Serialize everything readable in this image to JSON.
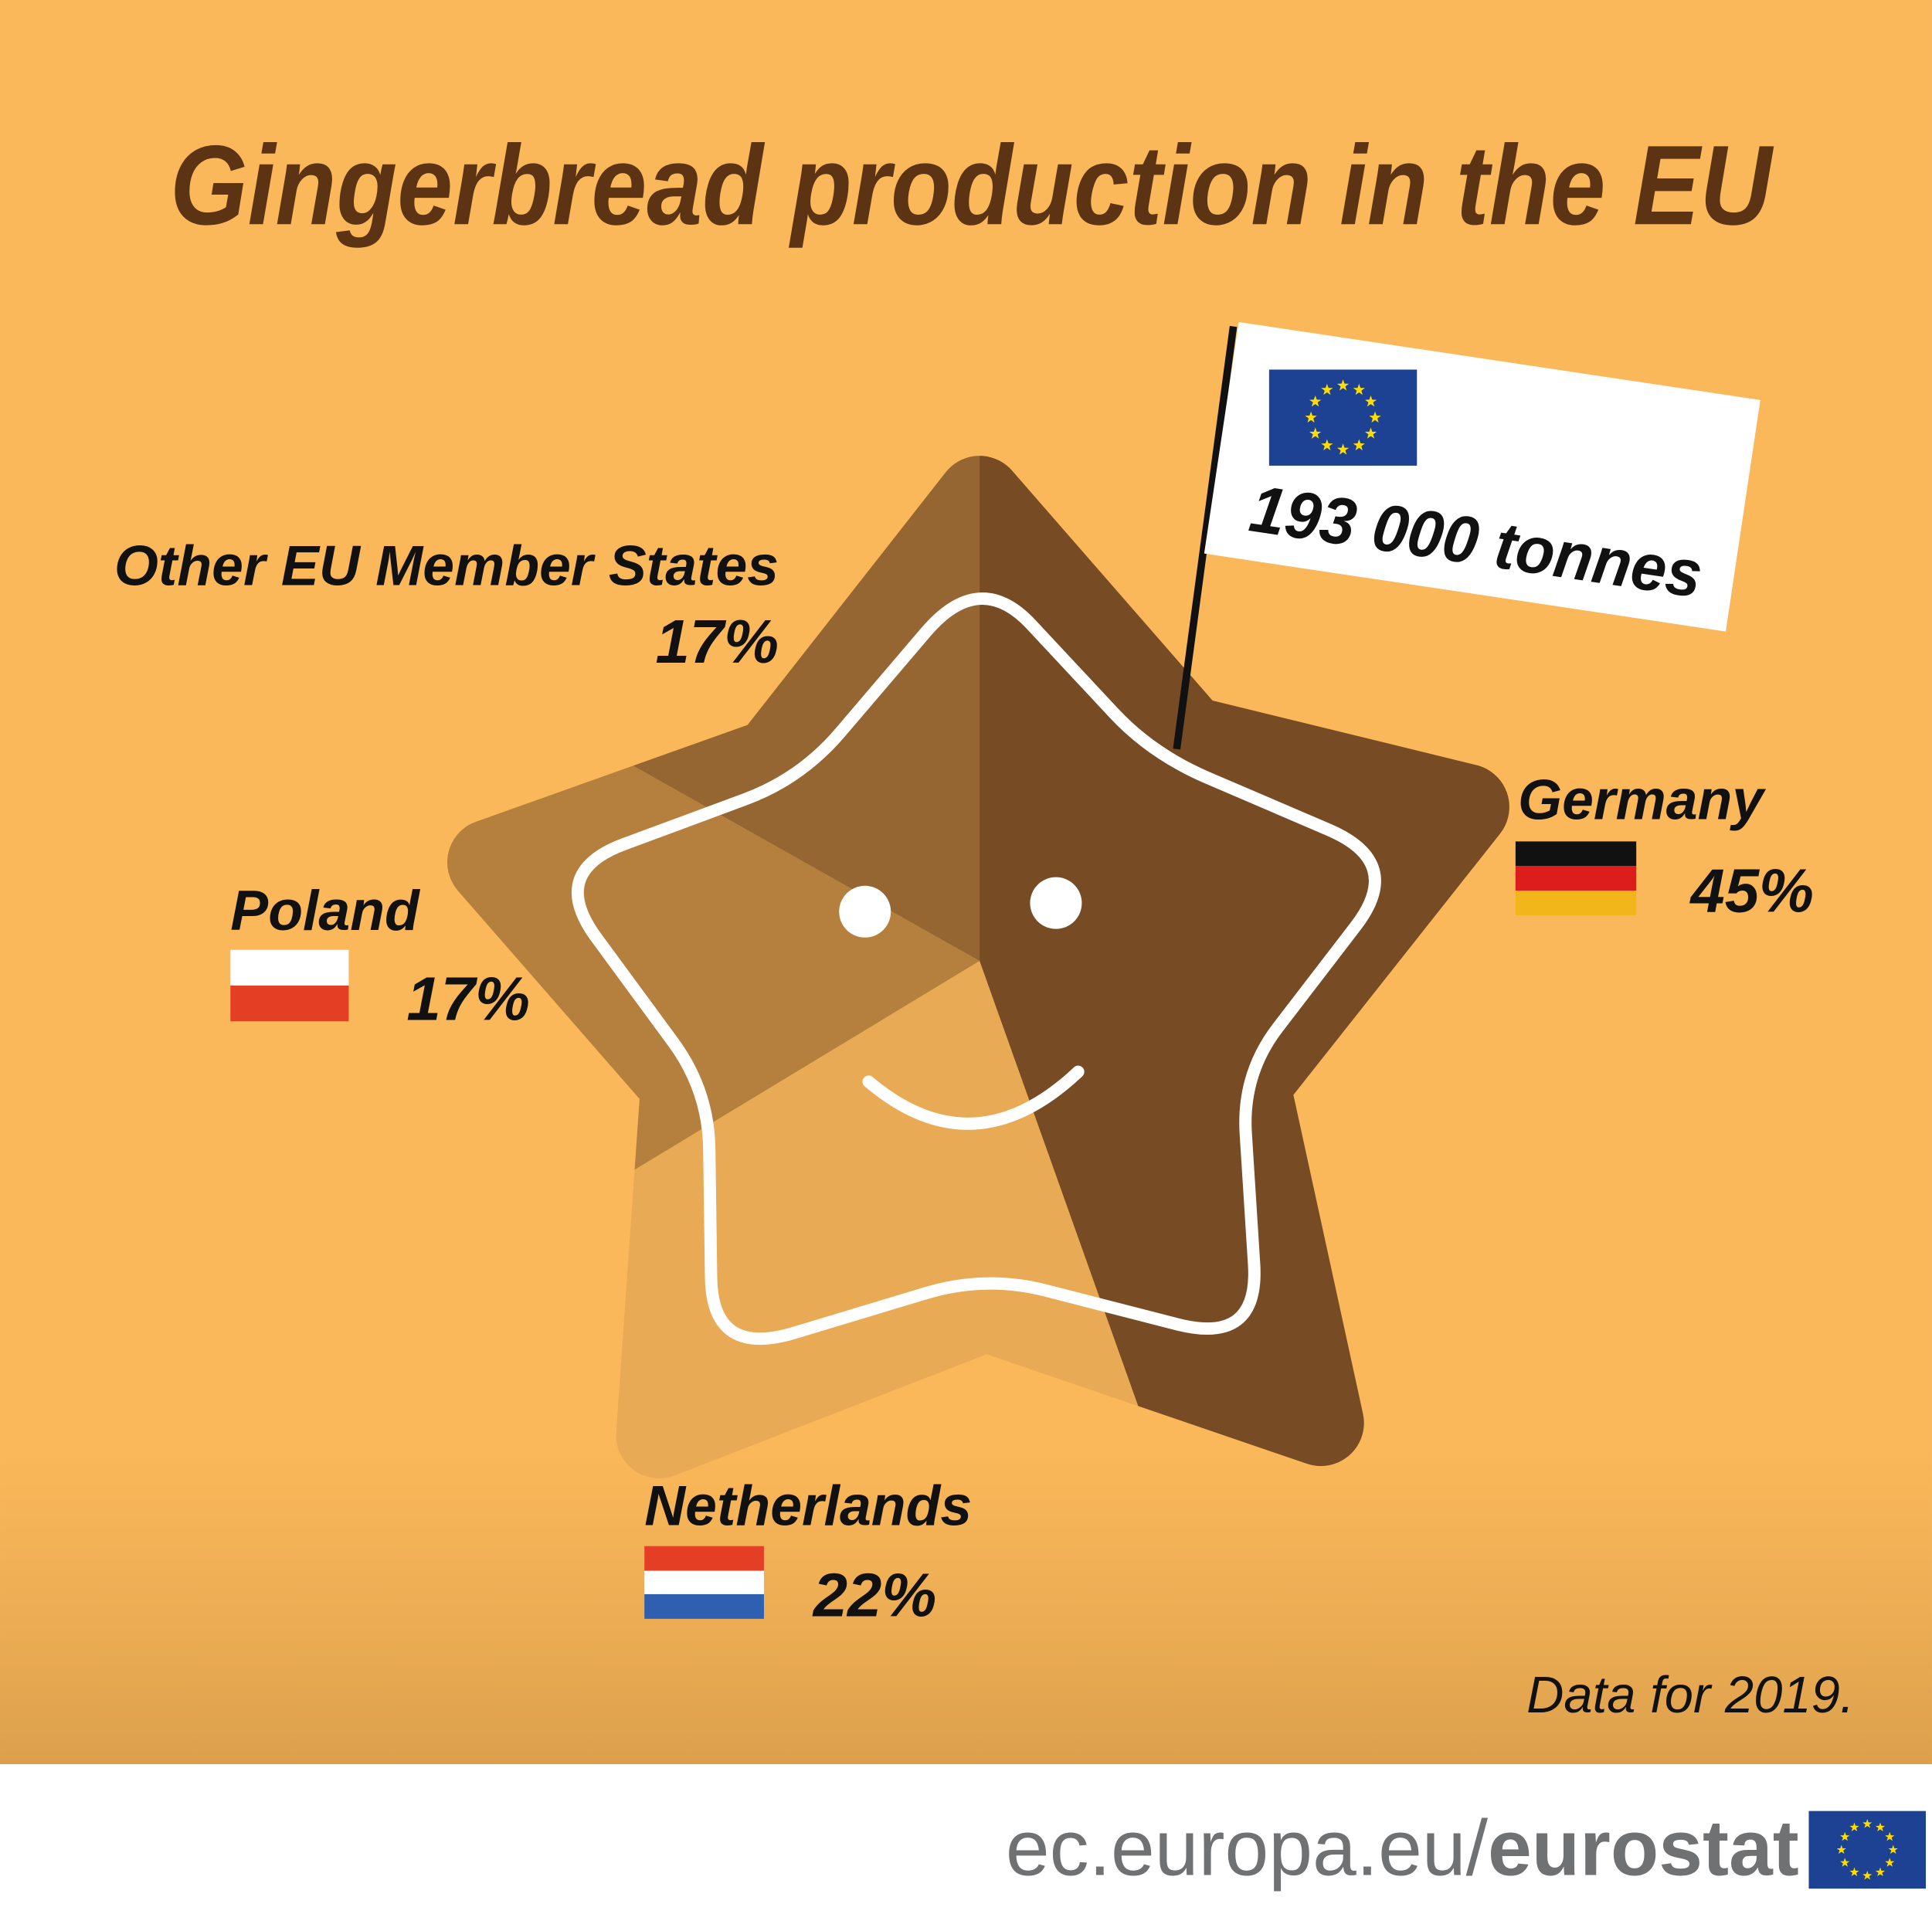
{
  "chart_data": {
    "type": "pie",
    "title": "Gingerbread production in the EU",
    "categories": [
      "Germany",
      "Netherlands",
      "Poland",
      "Other EU Member States"
    ],
    "values": [
      45,
      22,
      17,
      17
    ],
    "value_labels": [
      "45%",
      "22%",
      "17%",
      "17%"
    ],
    "colors": [
      "#774b24",
      "#e9aa55",
      "#b5803d",
      "#956632"
    ],
    "annotations": [
      "193 000 tonnes",
      "Data for 2019."
    ]
  },
  "footer": {
    "url": "ec.europa.eu/",
    "brand": "eurostat"
  }
}
